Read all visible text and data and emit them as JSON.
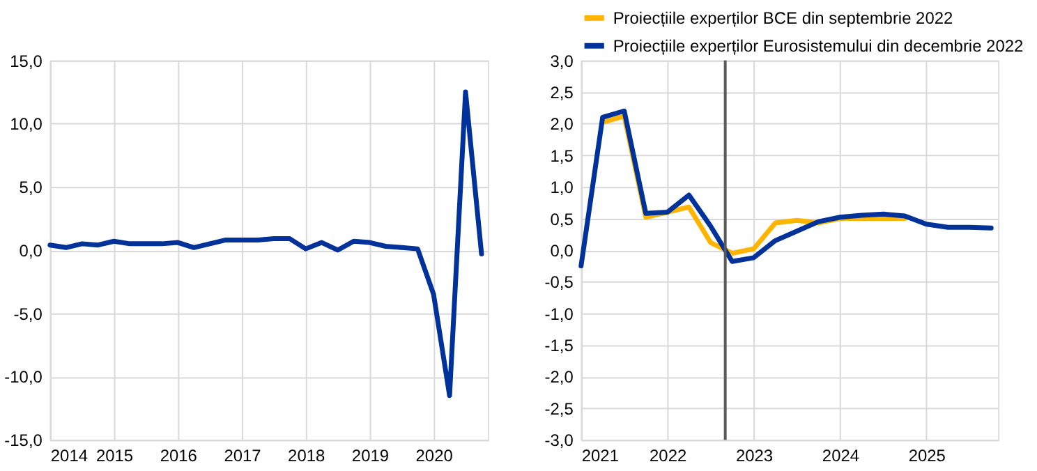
{
  "chart_data": [
    {
      "type": "line",
      "xlim": [
        2014,
        2020.85
      ],
      "xticks": [
        2014,
        2015,
        2016,
        2017,
        2018,
        2019,
        2020
      ],
      "ylim": [
        -15,
        15
      ],
      "yticks": [
        {
          "value": -15,
          "label": "-15,0"
        },
        {
          "value": -10,
          "label": "-10,0"
        },
        {
          "value": -5,
          "label": "-5,0"
        },
        {
          "value": 0,
          "label": "0,0"
        },
        {
          "value": 5,
          "label": "5,0"
        },
        {
          "value": 10,
          "label": "10,0"
        },
        {
          "value": 15,
          "label": "15,0"
        }
      ],
      "grid": true,
      "legend": false,
      "marker": "none",
      "line_style": "solid",
      "series": [
        {
          "color": "#003299",
          "x": [
            2014,
            2014.25,
            2014.5,
            2014.75,
            2015,
            2015.25,
            2015.5,
            2015.75,
            2016,
            2016.25,
            2016.5,
            2016.75,
            2017,
            2017.25,
            2017.5,
            2017.75,
            2018,
            2018.25,
            2018.5,
            2018.75,
            2019,
            2019.25,
            2019.5,
            2019.75,
            2020,
            2020.25,
            2020.5,
            2020.75
          ],
          "values": [
            0.4,
            0.2,
            0.5,
            0.4,
            0.7,
            0.5,
            0.5,
            0.5,
            0.6,
            0.2,
            0.5,
            0.8,
            0.8,
            0.8,
            0.9,
            0.9,
            0.1,
            0.6,
            0.0,
            0.7,
            0.6,
            0.3,
            0.2,
            0.1,
            -3.5,
            -11.5,
            12.5,
            -0.3
          ]
        }
      ]
    },
    {
      "type": "line",
      "xlim": [
        2021,
        2025.83
      ],
      "xticks": [
        2021,
        2022,
        2023,
        2024,
        2025
      ],
      "ylim": [
        -3,
        3
      ],
      "yticks": [
        {
          "value": -3,
          "label": "-3,0"
        },
        {
          "value": -2.5,
          "label": "-2,5"
        },
        {
          "value": -2,
          "label": "-2,0"
        },
        {
          "value": -1.5,
          "label": "-1,5"
        },
        {
          "value": -1,
          "label": "-1,0"
        },
        {
          "value": -0.5,
          "label": "-0,5"
        },
        {
          "value": 0,
          "label": "0,0"
        },
        {
          "value": 0.5,
          "label": "0,5"
        },
        {
          "value": 1,
          "label": "1,0"
        },
        {
          "value": 1.5,
          "label": "1,5"
        },
        {
          "value": 2,
          "label": "2,0"
        },
        {
          "value": 2.5,
          "label": "2,5"
        },
        {
          "value": 3,
          "label": "3,0"
        }
      ],
      "grid": true,
      "legend": "top",
      "marker": "none",
      "line_style": "solid",
      "ref_lines": [
        {
          "axis": "x",
          "value": 2022.67,
          "color": "#595959"
        }
      ],
      "series": [
        {
          "name": "Proiecțiile experților BCE din septembrie 2022",
          "color": "#ffb400",
          "x": [
            2021.25,
            2021.5,
            2021.75,
            2022,
            2022.25,
            2022.5,
            2022.75,
            2023,
            2023.25,
            2023.5,
            2023.75,
            2024,
            2024.25,
            2024.5,
            2024.75
          ],
          "values": [
            2.02,
            2.12,
            0.52,
            0.6,
            0.68,
            0.12,
            -0.05,
            0.02,
            0.43,
            0.47,
            0.43,
            0.5,
            0.5,
            0.5,
            0.5
          ]
        },
        {
          "name": "Proiecțiile experților Eurosistemului din decembrie 2022",
          "color": "#003299",
          "x": [
            2021,
            2021.25,
            2021.5,
            2021.75,
            2022,
            2022.25,
            2022.5,
            2022.75,
            2023,
            2023.25,
            2023.5,
            2023.75,
            2024,
            2024.25,
            2024.5,
            2024.75,
            2025,
            2025.25,
            2025.5,
            2025.75
          ],
          "values": [
            -0.25,
            2.1,
            2.2,
            0.58,
            0.6,
            0.87,
            0.38,
            -0.18,
            -0.12,
            0.15,
            0.3,
            0.45,
            0.52,
            0.55,
            0.57,
            0.54,
            0.41,
            0.36,
            0.36,
            0.35
          ]
        }
      ]
    }
  ]
}
